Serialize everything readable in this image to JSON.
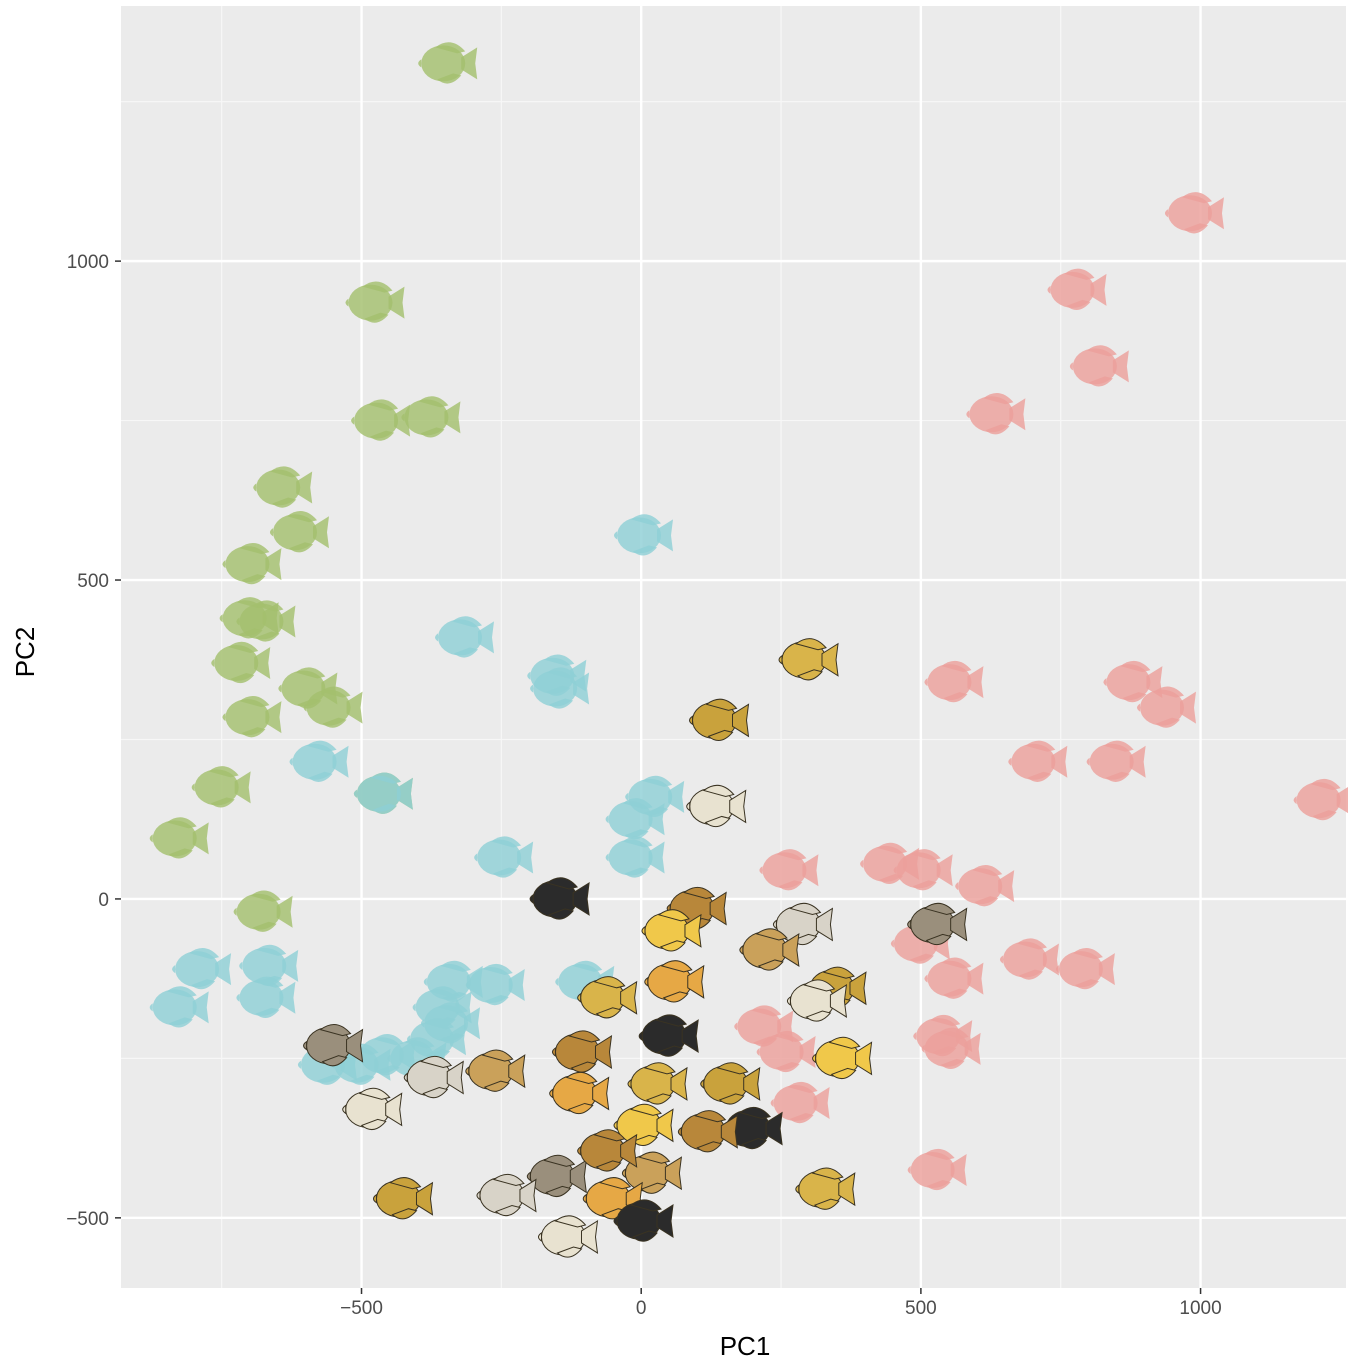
{
  "chart_data": {
    "type": "scatter",
    "title": "",
    "xlabel": "PC1",
    "ylabel": "PC2",
    "xlim": [
      -930,
      1260
    ],
    "ylim": [
      -610,
      1400
    ],
    "x_ticks": [
      -500,
      0,
      500,
      1000
    ],
    "x_tick_labels": [
      "−500",
      "0",
      "500",
      "1000"
    ],
    "y_ticks": [
      -500,
      0,
      500,
      1000
    ],
    "y_tick_labels": [
      "−500",
      "0",
      "500",
      "1000"
    ],
    "x_minor": [
      -750,
      -250,
      250,
      750
    ],
    "y_minor": [
      -250,
      250,
      750,
      1250
    ],
    "grid": true,
    "panel_color": "#ebebeb",
    "colors": {
      "green_cluster": "#a3bf6e",
      "blue_cluster": "#8fcfd6",
      "red_cluster": "#eba09b",
      "photo_fish": [
        "#d9b44a",
        "#c9a23c",
        "#e8e2d0",
        "#2b2b2b",
        "#b8873a",
        "#f0c84a",
        "#9a8f7c",
        "#d8d3c8",
        "#caa15a",
        "#e6a845"
      ]
    },
    "series": [
      {
        "color": "green_cluster",
        "points": [
          {
            "x": -345,
            "y": 1310
          },
          {
            "x": -475,
            "y": 935
          },
          {
            "x": -465,
            "y": 750
          },
          {
            "x": -375,
            "y": 755
          },
          {
            "x": -640,
            "y": 645
          },
          {
            "x": -610,
            "y": 575
          },
          {
            "x": -695,
            "y": 525
          },
          {
            "x": -700,
            "y": 440
          },
          {
            "x": -670,
            "y": 435
          },
          {
            "x": -715,
            "y": 370
          },
          {
            "x": -595,
            "y": 330
          },
          {
            "x": -550,
            "y": 300
          },
          {
            "x": -695,
            "y": 285
          },
          {
            "x": -750,
            "y": 175
          },
          {
            "x": -825,
            "y": 95
          },
          {
            "x": -460,
            "y": 165
          },
          {
            "x": -675,
            "y": -20
          }
        ]
      },
      {
        "color": "blue_cluster",
        "points": [
          {
            "x": 5,
            "y": 570
          },
          {
            "x": -315,
            "y": 410
          },
          {
            "x": -150,
            "y": 350
          },
          {
            "x": -145,
            "y": 330
          },
          {
            "x": -575,
            "y": 215
          },
          {
            "x": -460,
            "y": 165
          },
          {
            "x": 25,
            "y": 160
          },
          {
            "x": -10,
            "y": 125
          },
          {
            "x": -245,
            "y": 65
          },
          {
            "x": -10,
            "y": 65
          },
          {
            "x": -785,
            "y": -110
          },
          {
            "x": -665,
            "y": -105
          },
          {
            "x": -670,
            "y": -155
          },
          {
            "x": -825,
            "y": -170
          },
          {
            "x": -335,
            "y": -130
          },
          {
            "x": -355,
            "y": -170
          },
          {
            "x": -365,
            "y": -220
          },
          {
            "x": -260,
            "y": -135
          },
          {
            "x": -100,
            "y": -130
          },
          {
            "x": -560,
            "y": -260
          },
          {
            "x": -500,
            "y": -260
          },
          {
            "x": -455,
            "y": -245
          },
          {
            "x": -400,
            "y": -250
          },
          {
            "x": -340,
            "y": -195
          }
        ]
      },
      {
        "color": "red_cluster",
        "points": [
          {
            "x": 990,
            "y": 1075
          },
          {
            "x": 780,
            "y": 955
          },
          {
            "x": 820,
            "y": 835
          },
          {
            "x": 635,
            "y": 760
          },
          {
            "x": 560,
            "y": 340
          },
          {
            "x": 880,
            "y": 340
          },
          {
            "x": 940,
            "y": 300
          },
          {
            "x": 1220,
            "y": 155
          },
          {
            "x": 710,
            "y": 215
          },
          {
            "x": 850,
            "y": 215
          },
          {
            "x": 265,
            "y": 45
          },
          {
            "x": 445,
            "y": 55
          },
          {
            "x": 505,
            "y": 45
          },
          {
            "x": 615,
            "y": 20
          },
          {
            "x": 695,
            "y": -95
          },
          {
            "x": 795,
            "y": -110
          },
          {
            "x": 560,
            "y": -125
          },
          {
            "x": 540,
            "y": -215
          },
          {
            "x": 555,
            "y": -235
          },
          {
            "x": 220,
            "y": -200
          },
          {
            "x": 260,
            "y": -240
          },
          {
            "x": 285,
            "y": -320
          },
          {
            "x": 530,
            "y": -425
          },
          {
            "x": 500,
            "y": -70
          }
        ]
      },
      {
        "color": "photo_fish",
        "points": [
          {
            "x": 300,
            "y": 375
          },
          {
            "x": 140,
            "y": 280
          },
          {
            "x": 135,
            "y": 145
          },
          {
            "x": -145,
            "y": 0
          },
          {
            "x": 100,
            "y": -15
          },
          {
            "x": 55,
            "y": -50
          },
          {
            "x": 530,
            "y": -40
          },
          {
            "x": 290,
            "y": -40
          },
          {
            "x": 230,
            "y": -80
          },
          {
            "x": 60,
            "y": -130
          },
          {
            "x": -60,
            "y": -155
          },
          {
            "x": 350,
            "y": -140
          },
          {
            "x": 315,
            "y": -160
          },
          {
            "x": 50,
            "y": -215
          },
          {
            "x": -105,
            "y": -240
          },
          {
            "x": 360,
            "y": -250
          },
          {
            "x": -550,
            "y": -230
          },
          {
            "x": -370,
            "y": -280
          },
          {
            "x": -260,
            "y": -270
          },
          {
            "x": -110,
            "y": -305
          },
          {
            "x": 30,
            "y": -290
          },
          {
            "x": 160,
            "y": -290
          },
          {
            "x": -480,
            "y": -330
          },
          {
            "x": 200,
            "y": -360
          },
          {
            "x": 120,
            "y": -365
          },
          {
            "x": 5,
            "y": -355
          },
          {
            "x": -150,
            "y": -435
          },
          {
            "x": -240,
            "y": -465
          },
          {
            "x": 20,
            "y": -430
          },
          {
            "x": -50,
            "y": -470
          },
          {
            "x": 330,
            "y": -455
          },
          {
            "x": -425,
            "y": -470
          },
          {
            "x": -130,
            "y": -530
          },
          {
            "x": 5,
            "y": -505
          },
          {
            "x": -60,
            "y": -395
          }
        ]
      }
    ]
  }
}
